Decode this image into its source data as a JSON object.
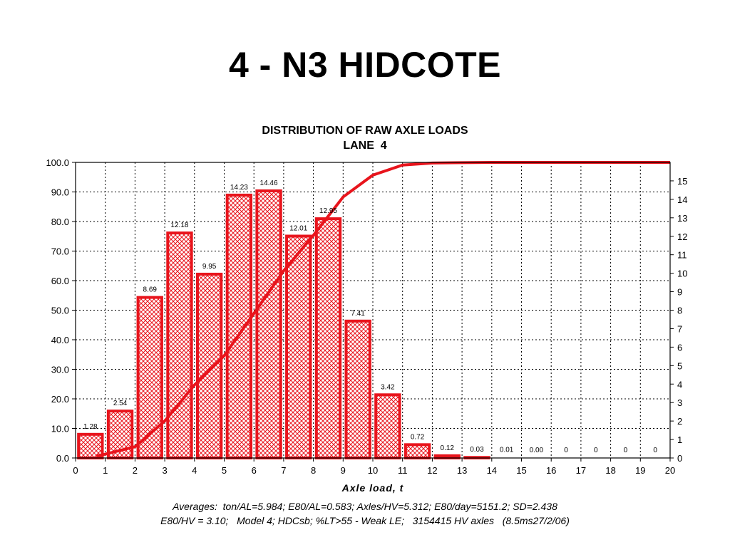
{
  "slide": {
    "title": "4 - N3 HIDCOTE"
  },
  "chart_data": {
    "type": "bar",
    "title": "DISTRIBUTION OF RAW AXLE LOADS",
    "subtitle": "LANE  4",
    "xlabel": "Axle load, t",
    "ylabel": "",
    "xlim": [
      0,
      20
    ],
    "ylim": [
      0,
      100
    ],
    "y2lim": [
      0,
      16
    ],
    "x_ticks": [
      "0",
      "1",
      "2",
      "3",
      "4",
      "5",
      "6",
      "7",
      "8",
      "9",
      "10",
      "11",
      "12",
      "13",
      "14",
      "15",
      "16",
      "17",
      "18",
      "19",
      "20"
    ],
    "y_ticks": [
      "0.0",
      "10.0",
      "20.0",
      "30.0",
      "40.0",
      "50.0",
      "60.0",
      "70.0",
      "80.0",
      "90.0",
      "100.0"
    ],
    "y2_ticks": [
      "0",
      "1",
      "2",
      "3",
      "4",
      "5",
      "6",
      "7",
      "8",
      "9",
      "10",
      "11",
      "12",
      "13",
      "14",
      "15"
    ],
    "grid": true,
    "bar_color": "#e8141c",
    "curve_color": "#e8141c",
    "series": [
      {
        "type": "bar",
        "axis": "right",
        "x": [
          0.5,
          1.5,
          2.5,
          3.5,
          4.5,
          5.5,
          6.5,
          7.5,
          8.5,
          9.5,
          10.5,
          11.5,
          12.5,
          13.5,
          14.5,
          15.5,
          16.5,
          17.5,
          18.5,
          19.5
        ],
        "values": [
          1.28,
          2.54,
          8.69,
          12.18,
          9.95,
          14.23,
          14.46,
          12.01,
          12.95,
          7.41,
          3.42,
          0.72,
          0.12,
          0.03,
          0.01,
          0.0,
          0,
          0,
          0,
          0
        ],
        "labels": [
          "1.28",
          "2.54",
          "8.69",
          "12.18",
          "9.95",
          "14.23",
          "14.46",
          "12.01",
          "12.95",
          "7.41",
          "3.42",
          "0.72",
          "0.12",
          "0.03",
          "0.01",
          "0.00",
          "0",
          "0",
          "0",
          "0"
        ]
      },
      {
        "type": "line",
        "axis": "left",
        "x": [
          1,
          2,
          3,
          4,
          5,
          6,
          7,
          8,
          9,
          10,
          11,
          12,
          13,
          14,
          15,
          16,
          17,
          18,
          19,
          20
        ],
        "values": [
          1.3,
          3.8,
          12.5,
          24.7,
          34.6,
          48.9,
          63.3,
          75.3,
          88.3,
          95.7,
          99.1,
          99.8,
          99.9,
          100,
          100,
          100,
          100,
          100,
          100,
          100
        ]
      }
    ]
  },
  "footnotes": {
    "line1": "Averages:  ton/AL=5.984; E80/AL=0.583; Axles/HV=5.312; E80/day=5151.2; SD=2.438",
    "line2": "E80/HV = 3.10;   Model 4; HDCsb; %LT>55 - Weak LE;   3154415 HV axles   (8.5ms27/2/06)"
  }
}
